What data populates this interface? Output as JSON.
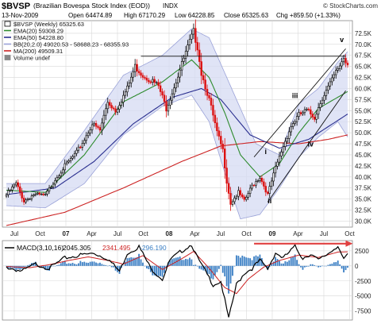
{
  "header": {
    "ticker": "$BVSP",
    "name": "(Brazilian Bovespa Stock Index (EOD))",
    "exchange": "INDX",
    "source": "© StockCharts.com",
    "date": "13-Nov-2009",
    "open": "Open 64474.89",
    "high": "High 67170.29",
    "low": "Low 64228.85",
    "close": "Close 65325.63",
    "change": "Chg +859.50 (+1.33%)"
  },
  "legend": [
    {
      "label": "$BVSP (Weekly) 65325.63",
      "color": "#000000",
      "swatch": "box"
    },
    {
      "label": "EMA(20) 59308.29",
      "color": "#2e8b2e",
      "swatch": "line"
    },
    {
      "label": "EMA(50) 54228.80",
      "color": "#2a2f8f",
      "swatch": "line"
    },
    {
      "label": "BB(20,2.0) 49020.53 - 58688.23 - 68355.93",
      "color": "#9aa2d8",
      "swatch": "line"
    },
    {
      "label": "MA(200) 49509.31",
      "color": "#cc2222",
      "swatch": "line"
    },
    {
      "label": "Volume undef",
      "color": "#888888",
      "swatch": "box"
    }
  ],
  "colors": {
    "up": "#000000",
    "down": "#dd1111",
    "ema20": "#2e8b2e",
    "ema50": "#2a2f8f",
    "bb_band": "#d6dbf3",
    "bb_line": "#9aa2d8",
    "ma200": "#cc2222",
    "macd": "#000000",
    "signal": "#cc2222",
    "hist": "#3b7fc4",
    "trendline": "#111111",
    "grid": "#d8d8d8"
  },
  "chart_data": [
    {
      "type": "candlestick",
      "title": "$BVSP (Brazilian Bovespa Stock Index (EOD)) INDX",
      "ylim": [
        29000,
        75000
      ],
      "yticks": [
        30000,
        32500,
        35000,
        37500,
        40000,
        42500,
        45000,
        47500,
        50000,
        52500,
        55000,
        57500,
        60000,
        62500,
        65000,
        67500,
        70000,
        72500
      ],
      "ytick_labels": [
        "30.0K",
        "32.5K",
        "35.0K",
        "37.5K",
        "40.0K",
        "42.5K",
        "45.0K",
        "47.5K",
        "50.0K",
        "52.5K",
        "55.0K",
        "57.5K",
        "60.0K",
        "62.5K",
        "65.0K",
        "67.5K",
        "70.0K",
        "72.5K"
      ],
      "xticks": [
        "Jul",
        "Oct",
        "07",
        "Apr",
        "Jul",
        "Oct",
        "08",
        "Apr",
        "Jul",
        "Oct",
        "09",
        "Apr",
        "Jul",
        "Oct"
      ],
      "grid": true,
      "legend_position": "top-left",
      "close_anchors": [
        [
          0,
          36000
        ],
        [
          5,
          38500
        ],
        [
          9,
          34500
        ],
        [
          14,
          36000
        ],
        [
          20,
          35800
        ],
        [
          25,
          39500
        ],
        [
          30,
          42500
        ],
        [
          36,
          45500
        ],
        [
          40,
          48500
        ],
        [
          44,
          52000
        ],
        [
          48,
          50500
        ],
        [
          52,
          57000
        ],
        [
          56,
          55000
        ],
        [
          62,
          60000
        ],
        [
          66,
          65000
        ],
        [
          70,
          63000
        ],
        [
          74,
          62000
        ],
        [
          78,
          60500
        ],
        [
          82,
          55500
        ],
        [
          86,
          60500
        ],
        [
          90,
          65500
        ],
        [
          94,
          70500
        ],
        [
          96,
          72800
        ],
        [
          98,
          69500
        ],
        [
          100,
          63500
        ],
        [
          104,
          57500
        ],
        [
          108,
          50000
        ],
        [
          111,
          46000
        ],
        [
          113,
          39000
        ],
        [
          115,
          34000
        ],
        [
          119,
          36500
        ],
        [
          122,
          34500
        ],
        [
          126,
          38000
        ],
        [
          130,
          40000
        ],
        [
          134,
          36000
        ],
        [
          138,
          42000
        ],
        [
          142,
          47000
        ],
        [
          146,
          51500
        ],
        [
          150,
          54000
        ],
        [
          154,
          55000
        ],
        [
          158,
          53500
        ],
        [
          162,
          58000
        ],
        [
          166,
          61000
        ],
        [
          170,
          64500
        ],
        [
          173,
          67000
        ],
        [
          175,
          65325
        ]
      ],
      "series": [
        {
          "name": "EMA(20)",
          "anchors": [
            [
              0,
              37000
            ],
            [
              20,
              36500
            ],
            [
              40,
              45000
            ],
            [
              60,
              57000
            ],
            [
              80,
              61500
            ],
            [
              95,
              66500
            ],
            [
              104,
              62500
            ],
            [
              112,
              54500
            ],
            [
              120,
              45000
            ],
            [
              130,
              40000
            ],
            [
              140,
              43000
            ],
            [
              150,
              50000
            ],
            [
              160,
              55500
            ],
            [
              175,
              59308
            ]
          ]
        },
        {
          "name": "EMA(50)",
          "anchors": [
            [
              0,
              36000
            ],
            [
              25,
              37500
            ],
            [
              45,
              43500
            ],
            [
              65,
              52000
            ],
            [
              85,
              58000
            ],
            [
              100,
              60000
            ],
            [
              110,
              57500
            ],
            [
              125,
              49500
            ],
            [
              140,
              46500
            ],
            [
              155,
              48500
            ],
            [
              175,
              54229
            ]
          ]
        },
        {
          "name": "MA(200)",
          "anchors": [
            [
              0,
              29000
            ],
            [
              30,
              32000
            ],
            [
              60,
              37500
            ],
            [
              90,
              43500
            ],
            [
              110,
              47000
            ],
            [
              130,
              48000
            ],
            [
              150,
              47500
            ],
            [
              165,
              48500
            ],
            [
              175,
              49509
            ]
          ]
        },
        {
          "name": "BB(20,2.0) upper",
          "anchors": [
            [
              0,
              38500
            ],
            [
              20,
              38500
            ],
            [
              40,
              50500
            ],
            [
              60,
              63000
            ],
            [
              80,
              67500
            ],
            [
              95,
              73500
            ],
            [
              104,
              71500
            ],
            [
              110,
              65500
            ],
            [
              118,
              57500
            ],
            [
              128,
              47500
            ],
            [
              140,
              45000
            ],
            [
              150,
              56500
            ],
            [
              160,
              60000
            ],
            [
              170,
              66000
            ],
            [
              175,
              68356
            ]
          ]
        },
        {
          "name": "BB(20,2.0) lower",
          "anchors": [
            [
              0,
              33500
            ],
            [
              20,
              33000
            ],
            [
              40,
              38500
            ],
            [
              60,
              49500
            ],
            [
              80,
              56000
            ],
            [
              95,
              58500
            ],
            [
              104,
              52500
            ],
            [
              112,
              41000
            ],
            [
              120,
              30500
            ],
            [
              130,
              31500
            ],
            [
              140,
              37500
            ],
            [
              150,
              44500
            ],
            [
              160,
              49000
            ],
            [
              170,
              52500
            ],
            [
              175,
              49021
            ]
          ]
        }
      ],
      "annotations": [
        {
          "label": "i",
          "x": 133,
          "y": 45200
        },
        {
          "label": "ii",
          "x": 135,
          "y": 34000
        },
        {
          "label": "iii",
          "x": 148,
          "y": 57800
        },
        {
          "label": "iv",
          "x": 156,
          "y": 46900
        },
        {
          "label": "v",
          "x": 172,
          "y": 70500
        }
      ],
      "trendlines": [
        {
          "name": "horizontal-resistance",
          "from": [
            69,
            67300
          ],
          "to": [
            174,
            67300
          ]
        },
        {
          "name": "upper-channel",
          "from": [
            127,
            44500
          ],
          "to": [
            174,
            69000
          ]
        },
        {
          "name": "lower-channel",
          "from": [
            134,
            34300
          ],
          "to": [
            174,
            59500
          ]
        }
      ]
    },
    {
      "type": "line+bar",
      "title": "MACD(3,10,16)",
      "values_label": {
        "macd": "2045.305",
        "signal": "2341.495",
        "hist": "-296.190"
      },
      "ylim": [
        -9000,
        4200
      ],
      "yticks": [
        2500,
        0,
        -2500,
        -5000,
        -7500
      ],
      "ytick_labels": [
        "2500",
        "0",
        "-2500",
        "-5000",
        "-7500"
      ],
      "macd_anchors": [
        [
          0,
          -200
        ],
        [
          8,
          -900
        ],
        [
          15,
          300
        ],
        [
          22,
          -400
        ],
        [
          30,
          1300
        ],
        [
          38,
          1800
        ],
        [
          45,
          2100
        ],
        [
          52,
          1200
        ],
        [
          58,
          -900
        ],
        [
          62,
          2100
        ],
        [
          68,
          3200
        ],
        [
          74,
          -400
        ],
        [
          80,
          -2200
        ],
        [
          84,
          1000
        ],
        [
          90,
          2500
        ],
        [
          95,
          3600
        ],
        [
          98,
          1300
        ],
        [
          102,
          -900
        ],
        [
          106,
          -3100
        ],
        [
          110,
          -2600
        ],
        [
          114,
          -8800
        ],
        [
          118,
          -3100
        ],
        [
          122,
          -1200
        ],
        [
          126,
          -400
        ],
        [
          130,
          900
        ],
        [
          134,
          -500
        ],
        [
          138,
          2200
        ],
        [
          142,
          1300
        ],
        [
          148,
          3200
        ],
        [
          152,
          1300
        ],
        [
          156,
          2000
        ],
        [
          160,
          900
        ],
        [
          166,
          2300
        ],
        [
          170,
          3400
        ],
        [
          173,
          900
        ],
        [
          175,
          2045
        ]
      ],
      "signal_anchors": [
        [
          0,
          -100
        ],
        [
          12,
          -300
        ],
        [
          22,
          200
        ],
        [
          32,
          900
        ],
        [
          42,
          1500
        ],
        [
          52,
          900
        ],
        [
          60,
          300
        ],
        [
          70,
          1700
        ],
        [
          80,
          -600
        ],
        [
          90,
          1200
        ],
        [
          96,
          2400
        ],
        [
          104,
          -400
        ],
        [
          112,
          -3600
        ],
        [
          118,
          -4600
        ],
        [
          124,
          -2200
        ],
        [
          132,
          -200
        ],
        [
          140,
          900
        ],
        [
          150,
          1800
        ],
        [
          160,
          1400
        ],
        [
          170,
          2300
        ],
        [
          175,
          2341
        ]
      ],
      "arrow": {
        "from": [
          127,
          3700
        ],
        "to": [
          176,
          3700
        ]
      }
    }
  ]
}
